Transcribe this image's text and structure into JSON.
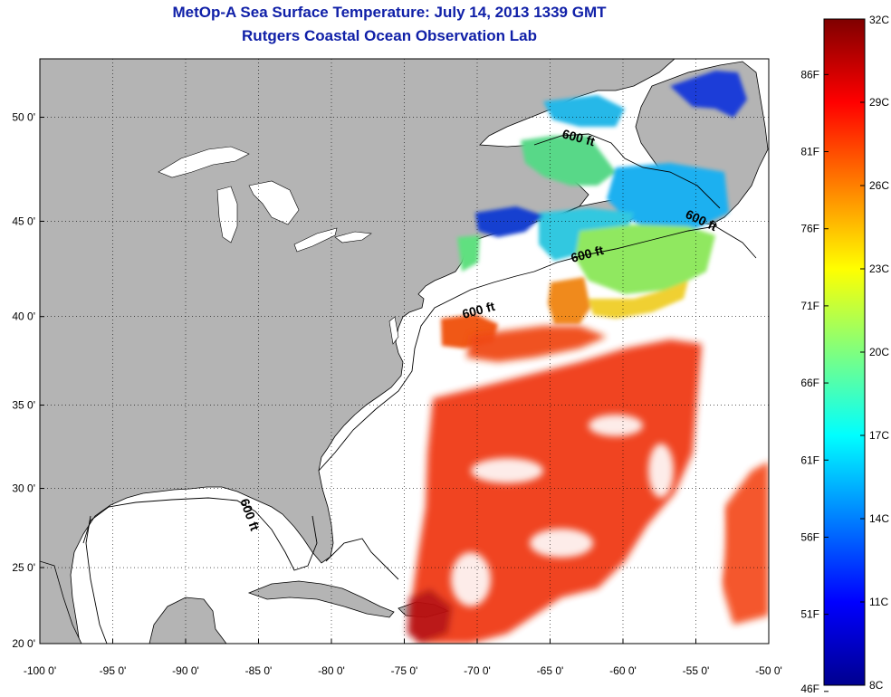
{
  "title": {
    "line1": "MetOp-A Sea Surface Temperature:  July 14, 2013 1339 GMT",
    "line2": "Rutgers Coastal Ocean Observation Lab"
  },
  "map": {
    "lon_labels": [
      "-100 0'",
      "-95 0'",
      "-90 0'",
      "-85 0'",
      "-80 0'",
      "-75 0'",
      "-70 0'",
      "-65 0'",
      "-60 0'",
      "-55 0'",
      "-50 0'"
    ],
    "lat_labels": [
      {
        "lat": 50,
        "label": "50 0'"
      },
      {
        "lat": 45,
        "label": "45 0'"
      },
      {
        "lat": 40,
        "label": "40 0'"
      },
      {
        "lat": 35,
        "label": "35 0'"
      },
      {
        "lat": 30,
        "label": "30 0'"
      },
      {
        "lat": 25,
        "label": "25 0'"
      },
      {
        "lat": 20,
        "label": "20 0'"
      }
    ],
    "contour_label": "600 ft",
    "colors": {
      "land": "#b4b4b4",
      "ocean": "#ffffff",
      "title": "#1020a8"
    }
  },
  "colorbar": {
    "celsius": [
      "8C",
      "11C",
      "14C",
      "17C",
      "20C",
      "23C",
      "26C",
      "29C",
      "32C"
    ],
    "fahrenheit": [
      "46F",
      "51F",
      "56F",
      "61F",
      "66F",
      "71F",
      "76F",
      "81F",
      "86F"
    ],
    "range_c": [
      8,
      32
    ]
  }
}
